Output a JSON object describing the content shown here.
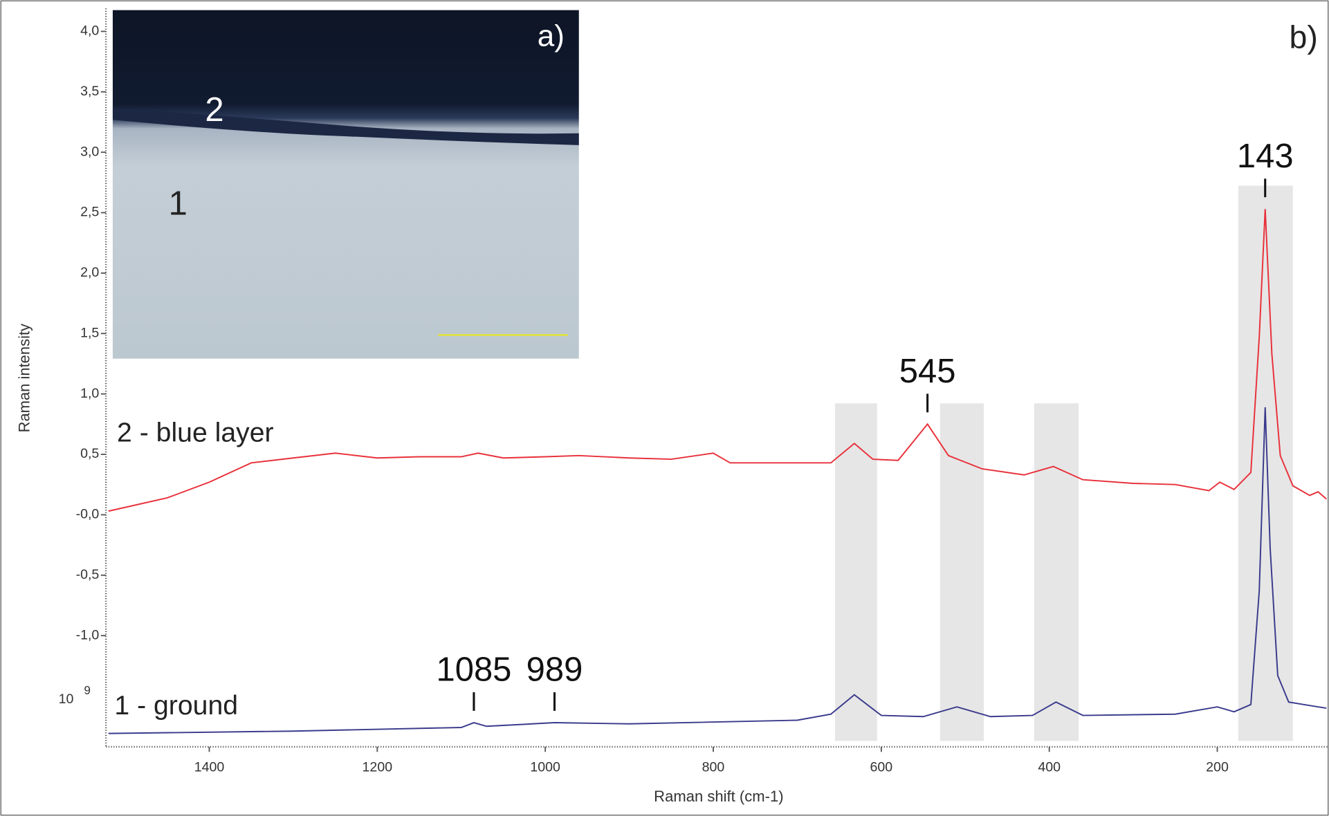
{
  "chart_data": {
    "type": "line",
    "panel_label": "b)",
    "x_label": "Raman shift (cm-1)",
    "y_label": "Raman intensity",
    "y_multiplier": {
      "base": "10",
      "exponent": "9"
    },
    "xlim": [
      1523,
      67
    ],
    "ylim": [
      -1.92,
      4.19
    ],
    "xticks": [
      1400,
      1200,
      1000,
      800,
      600,
      400,
      200
    ],
    "yticks": [
      {
        "value": -1.0,
        "label": "-1,0"
      },
      {
        "value": -0.5,
        "label": "-0,5"
      },
      {
        "value": 0,
        "label": "-0,0"
      },
      {
        "value": 0.5,
        "label": "0,5"
      },
      {
        "value": 1.0,
        "label": "1,0"
      },
      {
        "value": 1.5,
        "label": "1,5"
      },
      {
        "value": 2.0,
        "label": "2,0"
      },
      {
        "value": 2.5,
        "label": "2,5"
      },
      {
        "value": 3.0,
        "label": "3,0"
      },
      {
        "value": 3.5,
        "label": "3,5"
      },
      {
        "value": 4.0,
        "label": "4,0"
      }
    ],
    "highlight_bands": [
      [
        655,
        605
      ],
      [
        530,
        478
      ],
      [
        418,
        365
      ],
      [
        175,
        110
      ]
    ],
    "peaks": [
      143,
      545,
      1085,
      989
    ],
    "series": [
      {
        "name": "2 - blue layer",
        "color": "#e8303a",
        "x": [
          1520,
          1450,
          1400,
          1350,
          1300,
          1250,
          1200,
          1150,
          1100,
          1080,
          1050,
          1000,
          960,
          900,
          850,
          800,
          780,
          700,
          660,
          632,
          610,
          580,
          545,
          520,
          480,
          430,
          395,
          360,
          300,
          250,
          210,
          197,
          180,
          160,
          150,
          143,
          135,
          125,
          110,
          90,
          80,
          70
        ],
        "values": [
          0.03,
          0.14,
          0.27,
          0.43,
          0.47,
          0.51,
          0.47,
          0.48,
          0.48,
          0.51,
          0.47,
          0.48,
          0.49,
          0.47,
          0.46,
          0.51,
          0.43,
          0.43,
          0.43,
          0.59,
          0.46,
          0.45,
          0.75,
          0.49,
          0.38,
          0.33,
          0.4,
          0.29,
          0.26,
          0.25,
          0.2,
          0.27,
          0.21,
          0.35,
          1.47,
          2.53,
          1.33,
          0.49,
          0.24,
          0.16,
          0.19,
          0.13
        ]
      },
      {
        "name": "1 - ground",
        "color": "#3a3a8c",
        "x": [
          1520,
          1300,
          1100,
          1085,
          1070,
          989,
          900,
          700,
          660,
          632,
          600,
          550,
          510,
          470,
          420,
          392,
          360,
          250,
          200,
          180,
          160,
          150,
          143,
          137,
          128,
          115,
          80,
          70
        ],
        "values": [
          -1.81,
          -1.79,
          -1.76,
          -1.72,
          -1.75,
          -1.72,
          -1.73,
          -1.7,
          -1.65,
          -1.49,
          -1.66,
          -1.67,
          -1.59,
          -1.67,
          -1.66,
          -1.55,
          -1.66,
          -1.65,
          -1.59,
          -1.63,
          -1.57,
          -0.63,
          0.89,
          -0.28,
          -1.33,
          -1.55,
          -1.59,
          -1.6
        ]
      }
    ],
    "inset": {
      "label": "a)",
      "layer_labels": [
        "2",
        "1"
      ]
    }
  }
}
